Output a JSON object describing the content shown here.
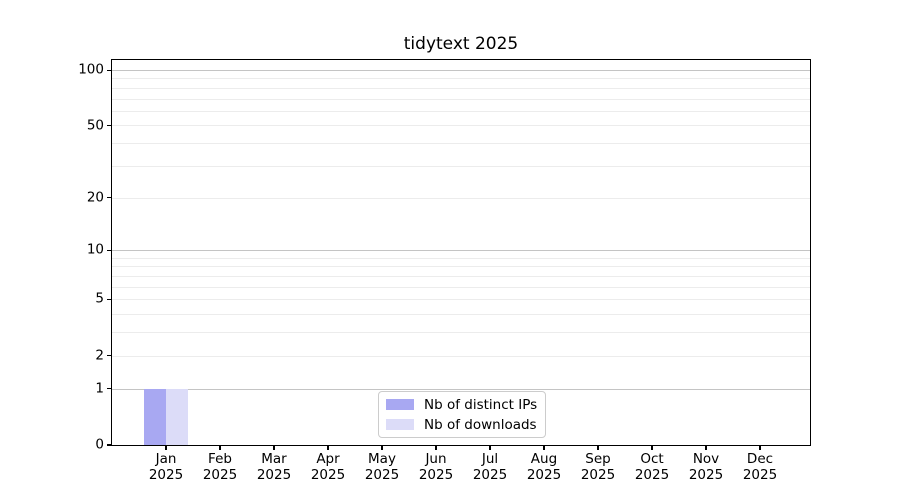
{
  "chart_data": {
    "type": "bar",
    "title": "tidytext 2025",
    "categories": [
      {
        "line1": "Jan",
        "line2": "2025"
      },
      {
        "line1": "Feb",
        "line2": "2025"
      },
      {
        "line1": "Mar",
        "line2": "2025"
      },
      {
        "line1": "Apr",
        "line2": "2025"
      },
      {
        "line1": "May",
        "line2": "2025"
      },
      {
        "line1": "Jun",
        "line2": "2025"
      },
      {
        "line1": "Jul",
        "line2": "2025"
      },
      {
        "line1": "Aug",
        "line2": "2025"
      },
      {
        "line1": "Sep",
        "line2": "2025"
      },
      {
        "line1": "Oct",
        "line2": "2025"
      },
      {
        "line1": "Nov",
        "line2": "2025"
      },
      {
        "line1": "Dec",
        "line2": "2025"
      }
    ],
    "series": [
      {
        "name": "Nb of distinct IPs",
        "color": "#a8a8f2",
        "values": [
          1,
          0,
          0,
          0,
          0,
          0,
          0,
          0,
          0,
          0,
          0,
          0
        ]
      },
      {
        "name": "Nb of downloads",
        "color": "#dcdcf8",
        "values": [
          1,
          0,
          0,
          0,
          0,
          0,
          0,
          0,
          0,
          0,
          0,
          0
        ]
      }
    ],
    "y_axis": {
      "scale": "log1p",
      "tick_values": [
        0,
        1,
        2,
        5,
        10,
        20,
        50,
        100
      ],
      "tick_labels": [
        "0",
        "1",
        "2",
        "5",
        "10",
        "20",
        "50",
        "100"
      ],
      "major_gridlines": [
        1,
        10,
        100
      ],
      "minor_gridlines": [
        2,
        3,
        4,
        5,
        6,
        7,
        8,
        9,
        20,
        30,
        40,
        50,
        60,
        70,
        80,
        90
      ],
      "ylim": [
        0,
        113
      ]
    },
    "legend": {
      "position": "lower center"
    },
    "grid": true,
    "colors": {
      "major_grid": "#c4c4c4",
      "minor_grid": "#ececec",
      "axis": "#000000",
      "text": "#000000",
      "background": "#ffffff"
    }
  }
}
